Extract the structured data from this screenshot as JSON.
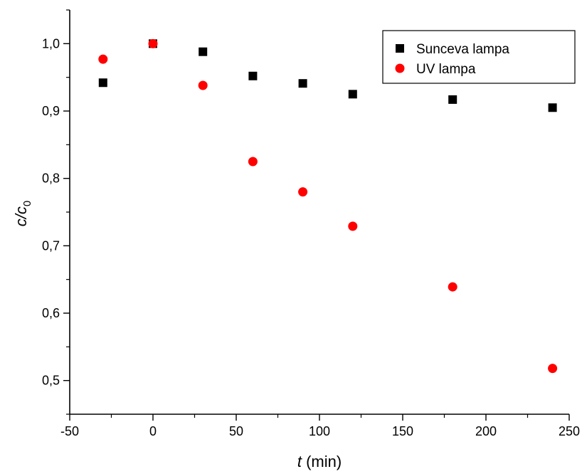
{
  "chart_data": {
    "type": "scatter",
    "xlabel": {
      "symbol": "t",
      "unit": " (min)"
    },
    "ylabel": {
      "symbol": "c/c",
      "subscript": "0"
    },
    "xlim": [
      -50,
      250
    ],
    "ylim": [
      0.45,
      1.05
    ],
    "x_ticks": [
      -50,
      0,
      50,
      100,
      150,
      200,
      250
    ],
    "x_tick_labels": [
      "-50",
      "0",
      "50",
      "100",
      "150",
      "200",
      "250"
    ],
    "y_ticks": [
      0.5,
      0.6,
      0.7,
      0.8,
      0.9,
      1.0
    ],
    "y_tick_labels": [
      "0,5",
      "0,6",
      "0,7",
      "0,8",
      "0,9",
      "1,0"
    ],
    "grid": false,
    "legend_position": "top-right",
    "series": [
      {
        "name": "Sunceva lampa",
        "marker": "square",
        "color": "#000000",
        "x": [
          -30,
          0,
          30,
          60,
          90,
          120,
          180,
          240
        ],
        "y": [
          0.942,
          1.0,
          0.988,
          0.952,
          0.941,
          0.925,
          0.917,
          0.905
        ]
      },
      {
        "name": "UV lampa",
        "marker": "circle",
        "color": "#ff0000",
        "x": [
          -30,
          0,
          30,
          60,
          90,
          120,
          180,
          240
        ],
        "y": [
          0.977,
          1.0,
          0.938,
          0.825,
          0.78,
          0.729,
          0.639,
          0.518
        ]
      }
    ]
  }
}
